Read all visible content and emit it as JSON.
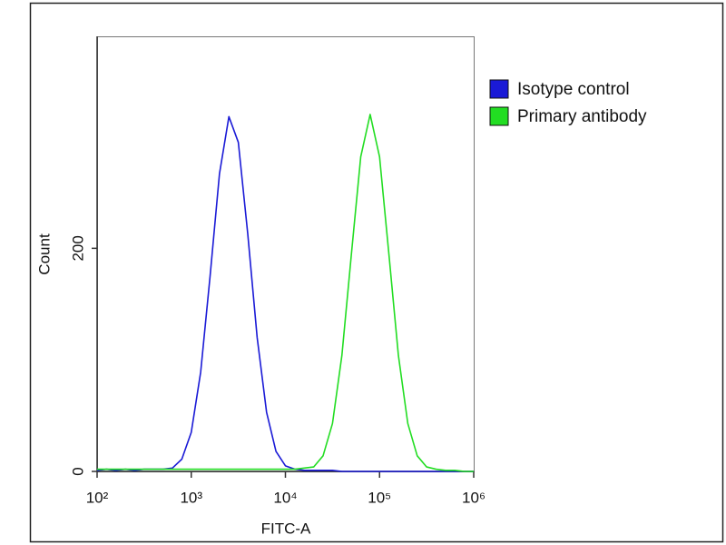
{
  "chart_data": {
    "type": "line",
    "x_label": "FITC-A",
    "y_label": "Count",
    "log_x": true,
    "legend": "right",
    "x": [
      100,
      126,
      158,
      200,
      251,
      316,
      398,
      501,
      631,
      794,
      1000,
      1259,
      1585,
      1995,
      2512,
      3162,
      3981,
      5012,
      6310,
      7943,
      10000,
      12589,
      15849,
      19953,
      25119,
      31623,
      39811,
      50119,
      63096,
      79433,
      100000,
      125893,
      158489,
      199526,
      251189,
      316228,
      398107,
      501187,
      630957,
      794328,
      1000000
    ],
    "series": [
      {
        "name": "Isotype control",
        "color": "#1a1ad6",
        "values": [
          1,
          2,
          1,
          2,
          1,
          2,
          2,
          2,
          3,
          11,
          35,
          89,
          175,
          267,
          318,
          295,
          213,
          120,
          53,
          18,
          5,
          2,
          1,
          1,
          1,
          1,
          0,
          0,
          0,
          0,
          0,
          0,
          0,
          0,
          0,
          0,
          0,
          0,
          0,
          0,
          0
        ]
      },
      {
        "name": "Primary antibody",
        "color": "#22dd22",
        "values": [
          2,
          2,
          2,
          2,
          2,
          2,
          2,
          2,
          2,
          2,
          2,
          2,
          2,
          2,
          2,
          2,
          2,
          2,
          2,
          2,
          2,
          2,
          3,
          4,
          14,
          43,
          104,
          194,
          282,
          320,
          282,
          194,
          104,
          43,
          14,
          4,
          2,
          1,
          1,
          0,
          0
        ]
      }
    ],
    "xlim": [
      100,
      1000000
    ],
    "xticks": [
      {
        "value": 100,
        "label": "10²"
      },
      {
        "value": 1000,
        "label": "10³"
      },
      {
        "value": 10000,
        "label": "10⁴"
      },
      {
        "value": 100000,
        "label": "10⁵"
      },
      {
        "value": 1000000,
        "label": "10⁶"
      }
    ],
    "ylim": [
      0,
      390
    ],
    "yticks": [
      0,
      200
    ]
  }
}
